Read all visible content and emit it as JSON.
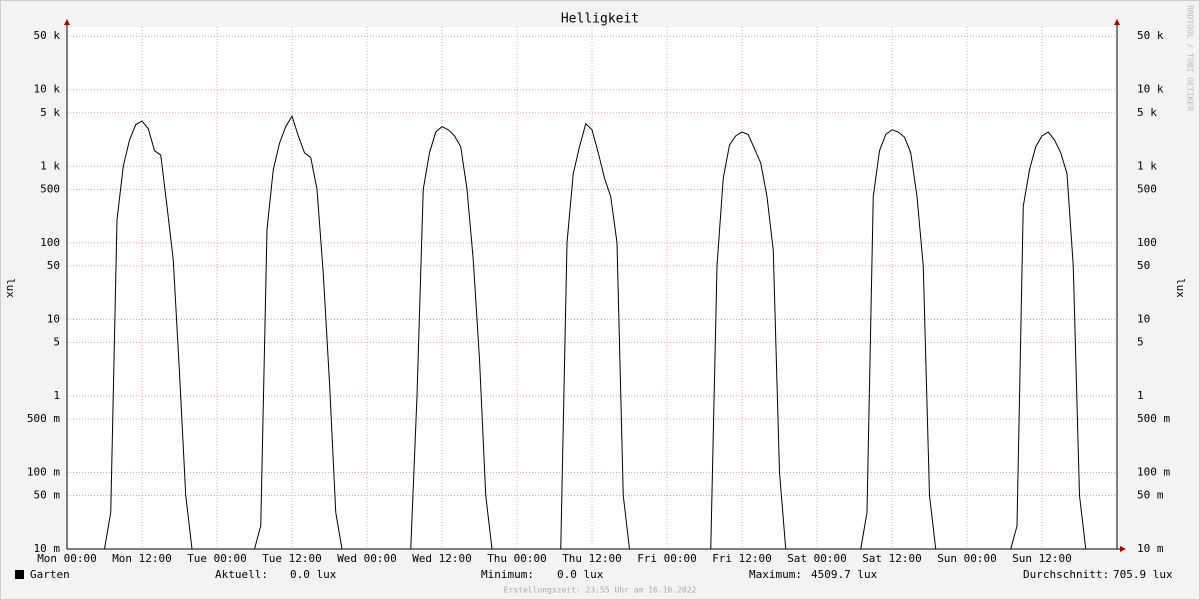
{
  "chart_data": {
    "type": "line",
    "title": "Helligkeit",
    "ylabel": "lux",
    "y2label": "lux",
    "log_scale": true,
    "grid": true,
    "watermark": "RRDTOOL / TOBI OETIKER",
    "footer": "Erstellungszeit: 23:55 Uhr am 16.10.2022",
    "xlim": [
      0,
      168
    ],
    "xticks": [
      {
        "value": 0,
        "label": "Mon 00:00"
      },
      {
        "value": 12,
        "label": "Mon 12:00"
      },
      {
        "value": 24,
        "label": "Tue 00:00"
      },
      {
        "value": 36,
        "label": "Tue 12:00"
      },
      {
        "value": 48,
        "label": "Wed 00:00"
      },
      {
        "value": 60,
        "label": "Wed 12:00"
      },
      {
        "value": 72,
        "label": "Thu 00:00"
      },
      {
        "value": 84,
        "label": "Thu 12:00"
      },
      {
        "value": 96,
        "label": "Fri 00:00"
      },
      {
        "value": 108,
        "label": "Fri 12:00"
      },
      {
        "value": 120,
        "label": "Sat 00:00"
      },
      {
        "value": 132,
        "label": "Sat 12:00"
      },
      {
        "value": 144,
        "label": "Sun 00:00"
      },
      {
        "value": 156,
        "label": "Sun 12:00"
      }
    ],
    "ylim": [
      0.01,
      66000
    ],
    "yticks": [
      {
        "value": 0.01,
        "label": "10 m"
      },
      {
        "value": 0.05,
        "label": "50 m"
      },
      {
        "value": 0.1,
        "label": "100 m"
      },
      {
        "value": 0.5,
        "label": "500 m"
      },
      1,
      5,
      10,
      50,
      100,
      500,
      {
        "value": 1000,
        "label": "1 k"
      },
      {
        "value": 5000,
        "label": "5 k"
      },
      {
        "value": 10000,
        "label": "10 k"
      },
      {
        "value": 50000,
        "label": "50 k"
      }
    ],
    "x": [
      0,
      1,
      2,
      3,
      4,
      5,
      6,
      7,
      8,
      9,
      10,
      11,
      12,
      13,
      14,
      15,
      16,
      17,
      18,
      19,
      20,
      21,
      22,
      23,
      24,
      25,
      26,
      27,
      28,
      29,
      30,
      31,
      32,
      33,
      34,
      35,
      36,
      37,
      38,
      39,
      40,
      41,
      42,
      43,
      44,
      45,
      46,
      47,
      48,
      49,
      50,
      51,
      52,
      53,
      54,
      55,
      56,
      57,
      58,
      59,
      60,
      61,
      62,
      63,
      64,
      65,
      66,
      67,
      68,
      69,
      70,
      71,
      72,
      73,
      74,
      75,
      76,
      77,
      78,
      79,
      80,
      81,
      82,
      83,
      84,
      85,
      86,
      87,
      88,
      89,
      90,
      91,
      92,
      93,
      94,
      95,
      96,
      97,
      98,
      99,
      100,
      101,
      102,
      103,
      104,
      105,
      106,
      107,
      108,
      109,
      110,
      111,
      112,
      113,
      114,
      115,
      116,
      117,
      118,
      119,
      120,
      121,
      122,
      123,
      124,
      125,
      126,
      127,
      128,
      129,
      130,
      131,
      132,
      133,
      134,
      135,
      136,
      137,
      138,
      139,
      140,
      141,
      142,
      143,
      144,
      145,
      146,
      147,
      148,
      149,
      150,
      151,
      152,
      153,
      154,
      155,
      156,
      157,
      158,
      159,
      160,
      161,
      162,
      163,
      164,
      165,
      166,
      167,
      168
    ],
    "series": [
      {
        "name": "Garten",
        "color": "#000000",
        "values": [
          0,
          0,
          0,
          0,
          0,
          0,
          0,
          0.03,
          200,
          1000,
          2200,
          3500,
          3900,
          3100,
          1600,
          1400,
          300,
          60,
          2,
          0.05,
          0.01,
          0,
          0,
          0,
          0,
          0,
          0,
          0,
          0,
          0,
          0,
          0.02,
          150,
          900,
          2000,
          3300,
          4509.7,
          2500,
          1500,
          1300,
          500,
          40,
          1.5,
          0.03,
          0,
          0,
          0,
          0,
          0,
          0,
          0,
          0,
          0,
          0,
          0,
          0,
          1,
          500,
          1500,
          2800,
          3300,
          3000,
          2500,
          1800,
          500,
          60,
          3,
          0.05,
          0,
          0,
          0,
          0,
          0,
          0,
          0,
          0,
          0,
          0,
          0,
          0.01,
          100,
          800,
          1800,
          3600,
          3000,
          1500,
          700,
          400,
          100,
          0.05,
          0,
          0,
          0,
          0,
          0,
          0,
          0,
          0,
          0,
          0,
          0,
          0,
          0,
          0.01,
          50,
          700,
          1900,
          2500,
          2800,
          2600,
          1700,
          1100,
          400,
          80,
          0.1,
          0.01,
          0,
          0,
          0,
          0,
          0,
          0,
          0,
          0,
          0,
          0,
          0,
          0,
          0.03,
          400,
          1600,
          2600,
          3000,
          2800,
          2400,
          1500,
          400,
          50,
          0.05,
          0,
          0,
          0,
          0,
          0,
          0,
          0,
          0,
          0,
          0,
          0,
          0,
          0,
          0.02,
          300,
          900,
          1800,
          2500,
          2800,
          2200,
          1500,
          800,
          50,
          0.05,
          0.01,
          0,
          0,
          0,
          0,
          0
        ]
      }
    ],
    "legend": [
      {
        "label": "Aktuell:",
        "value": "0.0 lux"
      },
      {
        "label": "Minimum:",
        "value": "0.0 lux"
      },
      {
        "label": "Maximum:",
        "value": "4509.7 lux"
      },
      {
        "label": "Durchschnitt:",
        "value": "705.9 lux"
      }
    ]
  }
}
